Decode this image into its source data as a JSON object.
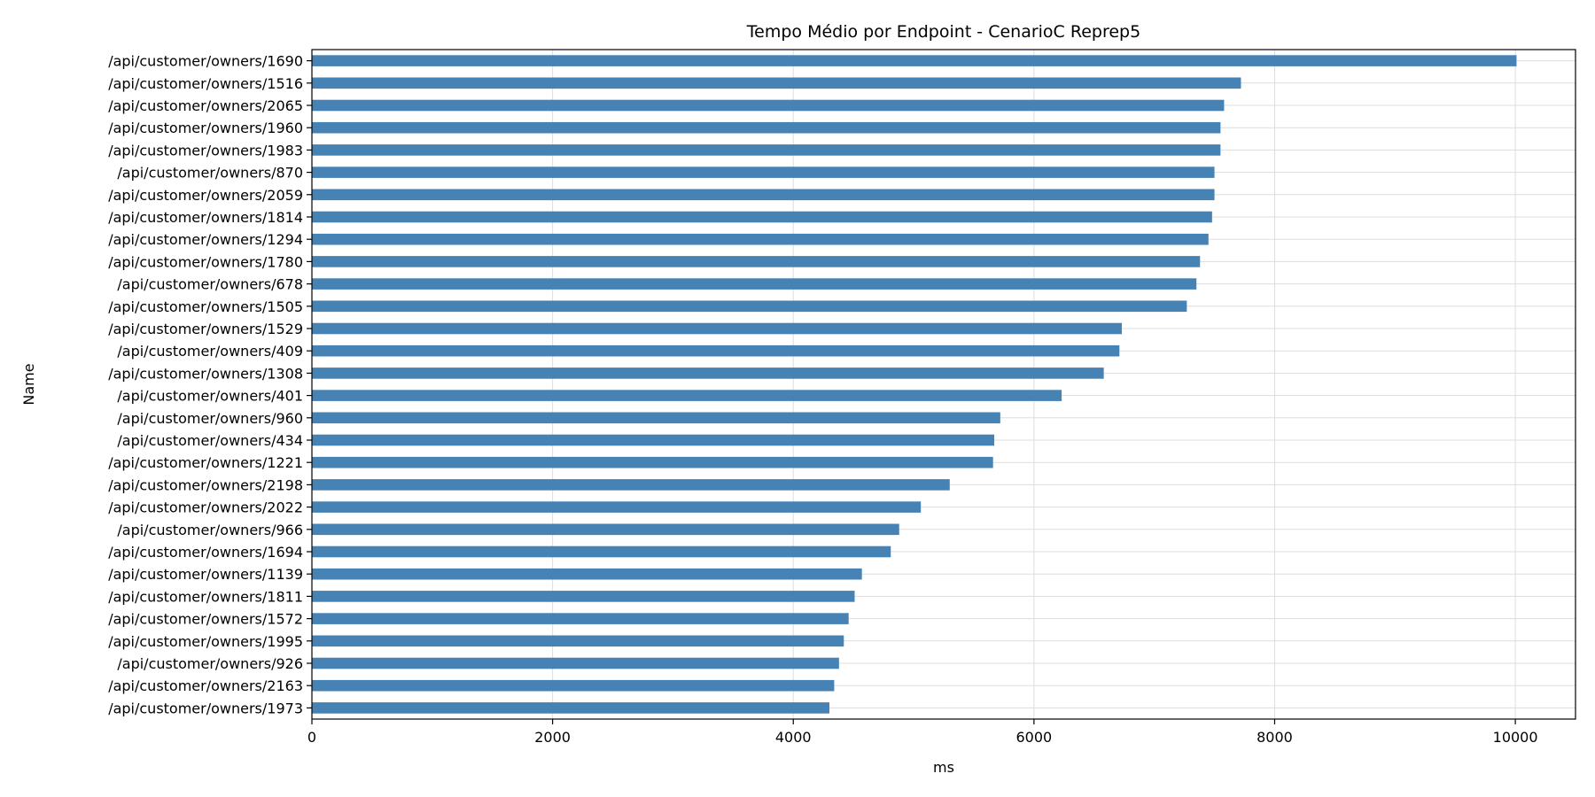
{
  "chart_data": {
    "type": "bar",
    "orientation": "horizontal",
    "title": "Tempo Médio por Endpoint - CenarioC Reprep5",
    "xlabel": "ms",
    "ylabel": "Name",
    "xlim": [
      0,
      10500
    ],
    "xticks": [
      0,
      2000,
      4000,
      6000,
      8000,
      10000
    ],
    "grid": true,
    "bar_color": "#4682b4",
    "categories": [
      "/api/customer/owners/1973",
      "/api/customer/owners/2163",
      "/api/customer/owners/926",
      "/api/customer/owners/1995",
      "/api/customer/owners/1572",
      "/api/customer/owners/1811",
      "/api/customer/owners/1139",
      "/api/customer/owners/1694",
      "/api/customer/owners/966",
      "/api/customer/owners/2022",
      "/api/customer/owners/2198",
      "/api/customer/owners/1221",
      "/api/customer/owners/434",
      "/api/customer/owners/960",
      "/api/customer/owners/401",
      "/api/customer/owners/1308",
      "/api/customer/owners/409",
      "/api/customer/owners/1529",
      "/api/customer/owners/1505",
      "/api/customer/owners/678",
      "/api/customer/owners/1780",
      "/api/customer/owners/1294",
      "/api/customer/owners/1814",
      "/api/customer/owners/2059",
      "/api/customer/owners/870",
      "/api/customer/owners/1983",
      "/api/customer/owners/1960",
      "/api/customer/owners/2065",
      "/api/customer/owners/1516",
      "/api/customer/owners/1690"
    ],
    "values": [
      4300,
      4340,
      4380,
      4420,
      4460,
      4510,
      4570,
      4810,
      4880,
      5060,
      5300,
      5660,
      5670,
      5720,
      6230,
      6580,
      6710,
      6730,
      7270,
      7350,
      7380,
      7450,
      7480,
      7500,
      7500,
      7550,
      7550,
      7580,
      7720,
      10010
    ]
  }
}
